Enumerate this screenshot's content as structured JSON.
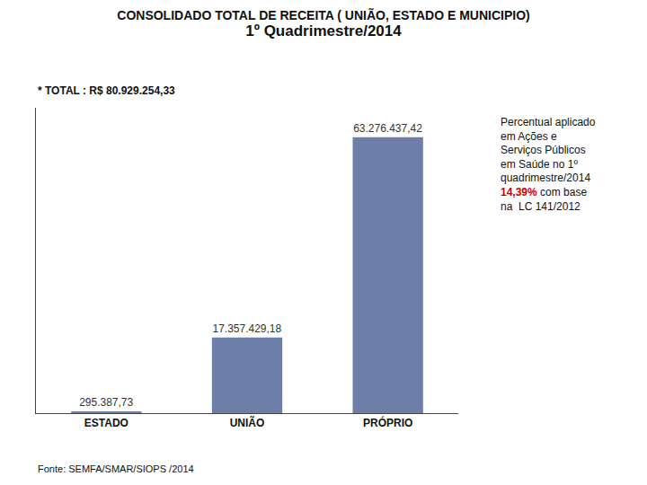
{
  "chart_data": {
    "type": "bar",
    "title": "CONSOLIDADO TOTAL DE RECEITA ( UNIÃO, ESTADO E MUNICIPIO)",
    "subtitle": "1º Quadrimestre/2014",
    "categories": [
      "ESTADO",
      "UNIÃO",
      "PRÓPRIO"
    ],
    "values": [
      295387.73,
      17357429.18,
      63276437.42
    ],
    "value_labels": [
      "295.387,73",
      "17.357.429,18",
      "63.276.437,42"
    ],
    "data_labels": true,
    "color": "#6d7fa8",
    "ylim": [
      0,
      70000000
    ],
    "tick_labels": "x",
    "grid": false,
    "annotations": [
      {
        "text": "* TOTAL : R$ 80.929.254,33"
      },
      {
        "text": "Percentual aplicado\nem Ações e\nServiços Públicos\nem Saúde no 1º\nquadrimestre/2014"
      },
      {
        "text": "14,39%",
        "color": "#cc0000"
      },
      {
        "text": " com base\nna  LC 141/2012"
      },
      {
        "text": "Fonte: SEMFA/SMAR/SIOPS /2014"
      }
    ]
  }
}
